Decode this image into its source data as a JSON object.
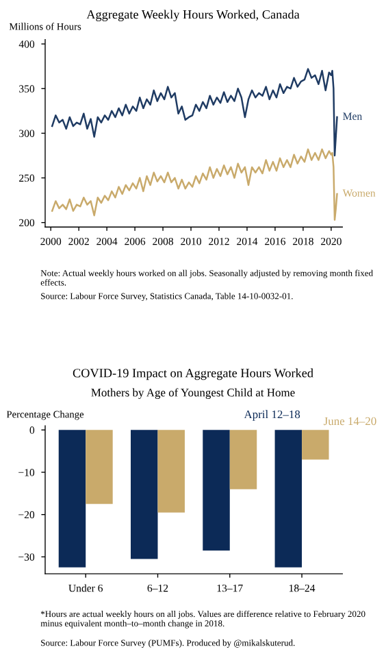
{
  "chart_data": [
    {
      "type": "line",
      "title": "Aggregate Weekly Hours Worked, Canada",
      "ylabel": "Millions of Hours",
      "x": [
        2000.1,
        2000.35,
        2000.6,
        2000.85,
        2001.1,
        2001.35,
        2001.6,
        2001.85,
        2002.1,
        2002.35,
        2002.6,
        2002.85,
        2003.1,
        2003.35,
        2003.6,
        2003.85,
        2004.1,
        2004.35,
        2004.6,
        2004.85,
        2005.1,
        2005.35,
        2005.6,
        2005.85,
        2006.1,
        2006.35,
        2006.6,
        2006.85,
        2007.1,
        2007.35,
        2007.6,
        2007.85,
        2008.1,
        2008.35,
        2008.6,
        2008.85,
        2009.1,
        2009.35,
        2009.6,
        2009.85,
        2010.1,
        2010.35,
        2010.6,
        2010.85,
        2011.1,
        2011.35,
        2011.6,
        2011.85,
        2012.1,
        2012.35,
        2012.6,
        2012.85,
        2013.1,
        2013.35,
        2013.6,
        2013.85,
        2014.1,
        2014.35,
        2014.6,
        2014.85,
        2015.1,
        2015.35,
        2015.6,
        2015.85,
        2016.1,
        2016.35,
        2016.6,
        2016.85,
        2017.1,
        2017.35,
        2017.6,
        2017.85,
        2018.1,
        2018.35,
        2018.6,
        2018.85,
        2019.1,
        2019.35,
        2019.6,
        2019.85,
        2020.0,
        2020.08,
        2020.17,
        2020.25,
        2020.33,
        2020.42
      ],
      "series": [
        {
          "name": "Men",
          "color": "#1f3b63",
          "values": [
            308,
            320,
            312,
            315,
            305,
            318,
            308,
            312,
            310,
            322,
            305,
            316,
            296,
            318,
            312,
            320,
            315,
            325,
            318,
            328,
            320,
            332,
            322,
            330,
            325,
            340,
            328,
            338,
            332,
            348,
            336,
            345,
            338,
            352,
            340,
            345,
            322,
            330,
            315,
            318,
            320,
            332,
            325,
            335,
            328,
            342,
            332,
            340,
            334,
            346,
            335,
            342,
            336,
            350,
            340,
            318,
            338,
            348,
            340,
            345,
            342,
            352,
            338,
            348,
            340,
            355,
            345,
            352,
            350,
            362,
            352,
            358,
            360,
            372,
            362,
            365,
            355,
            370,
            348,
            368,
            365,
            370,
            350,
            275,
            295,
            318
          ]
        },
        {
          "name": "Women",
          "color": "#c9aa6b",
          "values": [
            213,
            224,
            216,
            220,
            215,
            226,
            213,
            220,
            218,
            228,
            220,
            224,
            208,
            228,
            222,
            230,
            225,
            235,
            228,
            240,
            232,
            242,
            236,
            244,
            238,
            250,
            235,
            252,
            242,
            256,
            246,
            252,
            245,
            256,
            245,
            250,
            238,
            248,
            238,
            245,
            240,
            252,
            244,
            255,
            248,
            262,
            250,
            260,
            252,
            264,
            254,
            262,
            250,
            266,
            256,
            262,
            242,
            262,
            256,
            262,
            255,
            270,
            258,
            268,
            258,
            272,
            262,
            270,
            262,
            276,
            266,
            274,
            268,
            282,
            270,
            278,
            270,
            282,
            272,
            280,
            276,
            278,
            262,
            203,
            215,
            232
          ]
        }
      ],
      "xlim": [
        1999.6,
        2020.8
      ],
      "xticks": [
        2000,
        2002,
        2004,
        2006,
        2008,
        2010,
        2012,
        2014,
        2016,
        2018,
        2020
      ],
      "ylim": [
        195,
        405
      ],
      "yticks": [
        200,
        250,
        300,
        350,
        400
      ],
      "annotations": [
        "Note: Actual weekly hours worked on all jobs. Seasonally adjusted by removing month fixed effects.",
        "Source: Labour Force Survey, Statistics Canada, Table 14-10-0032-01."
      ]
    },
    {
      "type": "bar",
      "title": "COVID-19 Impact on Aggregate Hours Worked",
      "subtitle": "Mothers by Age of Youngest Child at Home",
      "ylabel": "Percentage Change",
      "categories": [
        "Under 6",
        "6–12",
        "13–17",
        "18–24"
      ],
      "series": [
        {
          "name": "April 12–18",
          "color": "#0c2a57",
          "values": [
            -32.5,
            -30.5,
            -28.5,
            -32.5
          ]
        },
        {
          "name": "June 14–20",
          "color": "#c9aa6b",
          "values": [
            -17.5,
            -19.5,
            -14,
            -7
          ]
        }
      ],
      "ylim": [
        -34,
        1
      ],
      "yticks": [
        {
          "value": 0,
          "label": "0"
        },
        {
          "value": -10,
          "label": "−10"
        },
        {
          "value": -20,
          "label": "−20"
        },
        {
          "value": -30,
          "label": "−30"
        }
      ],
      "annotations": [
        "*Hours are actual weekly hours on all jobs. Values are difference relative to February 2020 minus equivalent month–to–month change in 2018.",
        "Source: Labour Force Survey (PUMFs). Produced by @mikalskuterud."
      ]
    }
  ]
}
